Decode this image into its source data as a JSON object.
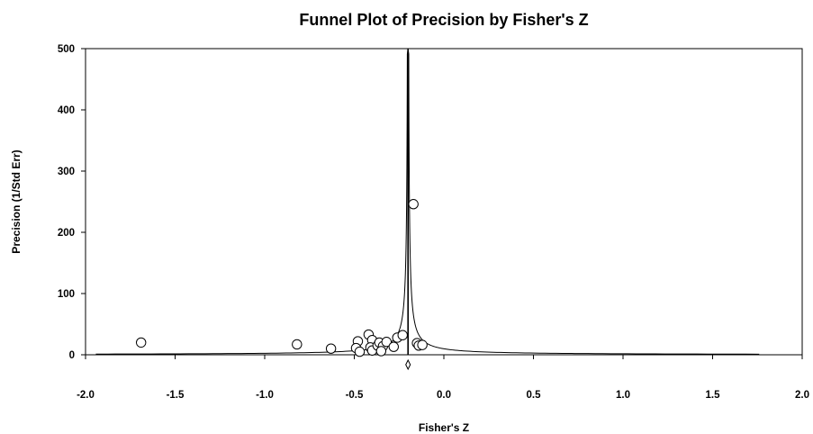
{
  "chart_data": {
    "type": "scatter",
    "title": "Funnel Plot of Precision by Fisher's Z",
    "xlabel": "Fisher's Z",
    "ylabel": "Precision (1/Std Err)",
    "xlim": [
      -2.0,
      2.0
    ],
    "ylim": [
      0,
      500
    ],
    "x_ticks": [
      -2.0,
      -1.5,
      -1.0,
      -0.5,
      0.0,
      0.5,
      1.0,
      1.5,
      2.0
    ],
    "x_tick_labels": [
      "-2.0",
      "-1.5",
      "-1.0",
      "-0.5",
      "0.0",
      "0.5",
      "1.0",
      "1.5",
      "2.0"
    ],
    "y_ticks": [
      0,
      100,
      200,
      300,
      400,
      500
    ],
    "y_tick_labels": [
      "0",
      "100",
      "200",
      "300",
      "400",
      "500"
    ],
    "grid": false,
    "summary_effect": -0.2,
    "points": [
      {
        "x": -1.69,
        "y": 20
      },
      {
        "x": -0.82,
        "y": 17
      },
      {
        "x": -0.63,
        "y": 10
      },
      {
        "x": -0.48,
        "y": 22
      },
      {
        "x": -0.49,
        "y": 11
      },
      {
        "x": -0.47,
        "y": 5
      },
      {
        "x": -0.42,
        "y": 33
      },
      {
        "x": -0.4,
        "y": 24
      },
      {
        "x": -0.41,
        "y": 12
      },
      {
        "x": -0.4,
        "y": 7
      },
      {
        "x": -0.37,
        "y": 15
      },
      {
        "x": -0.36,
        "y": 20
      },
      {
        "x": -0.34,
        "y": 14
      },
      {
        "x": -0.35,
        "y": 6
      },
      {
        "x": -0.32,
        "y": 21
      },
      {
        "x": -0.28,
        "y": 13
      },
      {
        "x": -0.26,
        "y": 28
      },
      {
        "x": -0.23,
        "y": 32
      },
      {
        "x": -0.17,
        "y": 246
      },
      {
        "x": -0.15,
        "y": 19
      },
      {
        "x": -0.14,
        "y": 15
      },
      {
        "x": -0.12,
        "y": 16
      }
    ]
  }
}
